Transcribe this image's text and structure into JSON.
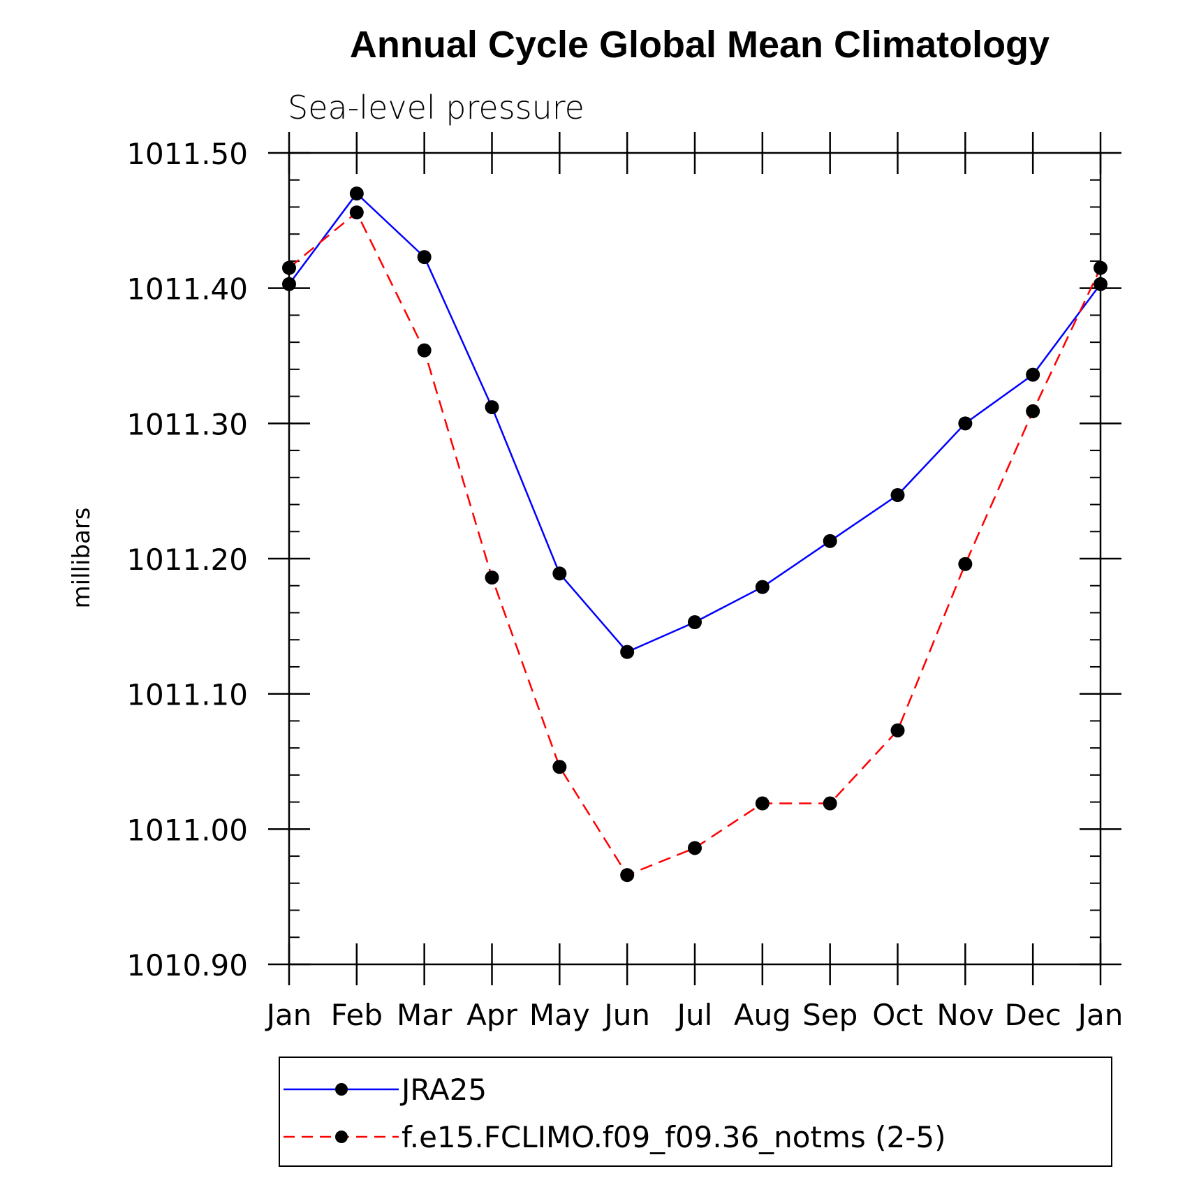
{
  "chart_data": {
    "type": "line",
    "title": "Annual Cycle Global Mean Climatology",
    "subtitle": "Sea-level pressure",
    "ylabel": "millibars",
    "xlabel": "",
    "categories": [
      "Jan",
      "Feb",
      "Mar",
      "Apr",
      "May",
      "Jun",
      "Jul",
      "Aug",
      "Sep",
      "Oct",
      "Nov",
      "Dec",
      "Jan"
    ],
    "ylim": [
      1010.9,
      1011.5
    ],
    "yticks": [
      "1010.90",
      "1011.00",
      "1011.10",
      "1011.20",
      "1011.30",
      "1011.40",
      "1011.50"
    ],
    "ytick_values": [
      1010.9,
      1011.0,
      1011.1,
      1011.2,
      1011.3,
      1011.4,
      1011.5
    ],
    "series": [
      {
        "name": "JRA25",
        "color": "#0000ff",
        "dash": "solid",
        "marker": "filled-circle",
        "values": [
          1011.403,
          1011.47,
          1011.423,
          1011.312,
          1011.189,
          1011.131,
          1011.153,
          1011.179,
          1011.213,
          1011.247,
          1011.3,
          1011.336,
          1011.403
        ]
      },
      {
        "name": "f.e15.FCLIMO.f09_f09.36_notms (2-5)",
        "color": "#ff0000",
        "dash": "dashed",
        "marker": "filled-circle",
        "values": [
          1011.415,
          1011.456,
          1011.354,
          1011.186,
          1011.046,
          1010.966,
          1010.986,
          1011.019,
          1011.019,
          1011.073,
          1011.196,
          1011.309,
          1011.415
        ]
      }
    ],
    "legend_position": "bottom"
  }
}
